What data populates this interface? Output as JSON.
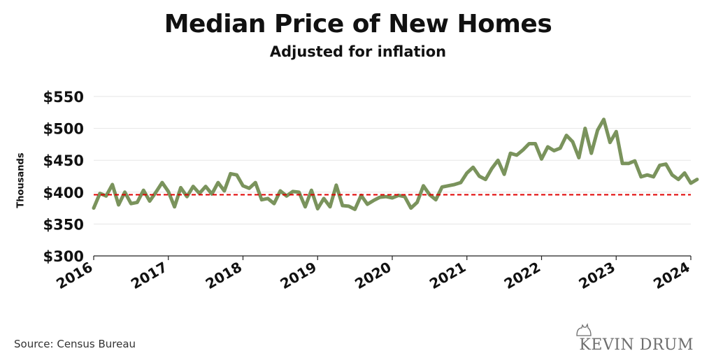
{
  "chart_data": {
    "type": "line",
    "title": "Median Price of New Homes",
    "subtitle": "Adjusted for inflation",
    "xlabel": "",
    "ylabel": "Thousands",
    "xlim": [
      2016,
      2024
    ],
    "ylim": [
      300,
      550
    ],
    "yticks": [
      300,
      350,
      400,
      450,
      500,
      550
    ],
    "ytick_labels": [
      "$300",
      "$350",
      "$400",
      "$450",
      "$500",
      "$550"
    ],
    "xticks": [
      2016,
      2017,
      2018,
      2019,
      2020,
      2021,
      2022,
      2023,
      2024
    ],
    "xtick_labels": [
      "2016",
      "2017",
      "2018",
      "2019",
      "2020",
      "2021",
      "2022",
      "2023",
      "2024"
    ],
    "grid": true,
    "legend": "none",
    "series": [
      {
        "color": "#7a935c",
        "start": "2016-01",
        "frequency": "monthly",
        "values": [
          375,
          398,
          394,
          412,
          380,
          400,
          382,
          384,
          403,
          386,
          400,
          415,
          401,
          377,
          407,
          393,
          409,
          398,
          409,
          397,
          415,
          402,
          429,
          427,
          410,
          406,
          415,
          388,
          390,
          382,
          402,
          394,
          401,
          400,
          377,
          403,
          374,
          390,
          377,
          411,
          379,
          378,
          373,
          395,
          381,
          387,
          392,
          393,
          391,
          395,
          393,
          375,
          384,
          410,
          396,
          388,
          408,
          410,
          412,
          415,
          430,
          439,
          425,
          420,
          437,
          450,
          428,
          461,
          458,
          466,
          476,
          476,
          452,
          471,
          465,
          469,
          489,
          479,
          454,
          500,
          461,
          497,
          514,
          478,
          495,
          445,
          445,
          449,
          424,
          427,
          424,
          442,
          444,
          427,
          420,
          430,
          414,
          420
        ]
      }
    ],
    "reference_line": {
      "value": 396,
      "color": "#e00000",
      "style": "dashed"
    }
  },
  "footer": {
    "source": "Source:  Census Bureau",
    "brand": "KEVIN DRUM"
  }
}
